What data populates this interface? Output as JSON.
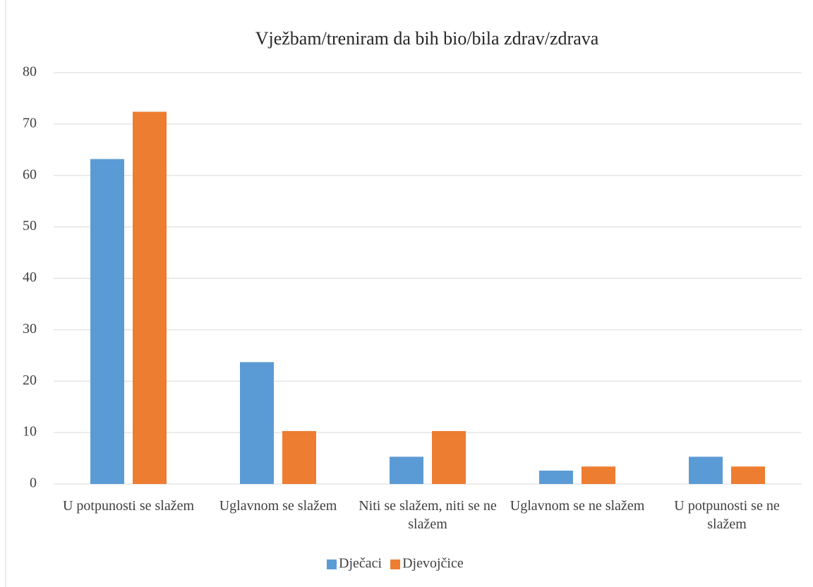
{
  "chart_data": {
    "type": "bar",
    "title": "Vježbam/treniram da bih bio/bila zdrav/zdrava",
    "categories": [
      "U potpunosti se slažem",
      "Uglavnom se slažem",
      "Niti se slažem, niti se ne slažem",
      "Uglavnom se ne slažem",
      "U potpunosti se ne slažem"
    ],
    "series": [
      {
        "name": "Dječaci",
        "color": "#5b9bd5",
        "values": [
          63.2,
          23.7,
          5.3,
          2.6,
          5.3
        ]
      },
      {
        "name": "Djevojčice",
        "color": "#ed7d31",
        "values": [
          72.4,
          10.3,
          10.3,
          3.4,
          3.4
        ]
      }
    ],
    "ylim": [
      0,
      80
    ],
    "yticks": [
      0,
      10,
      20,
      30,
      40,
      50,
      60,
      70,
      80
    ],
    "grid": true,
    "legend": "bottom"
  }
}
